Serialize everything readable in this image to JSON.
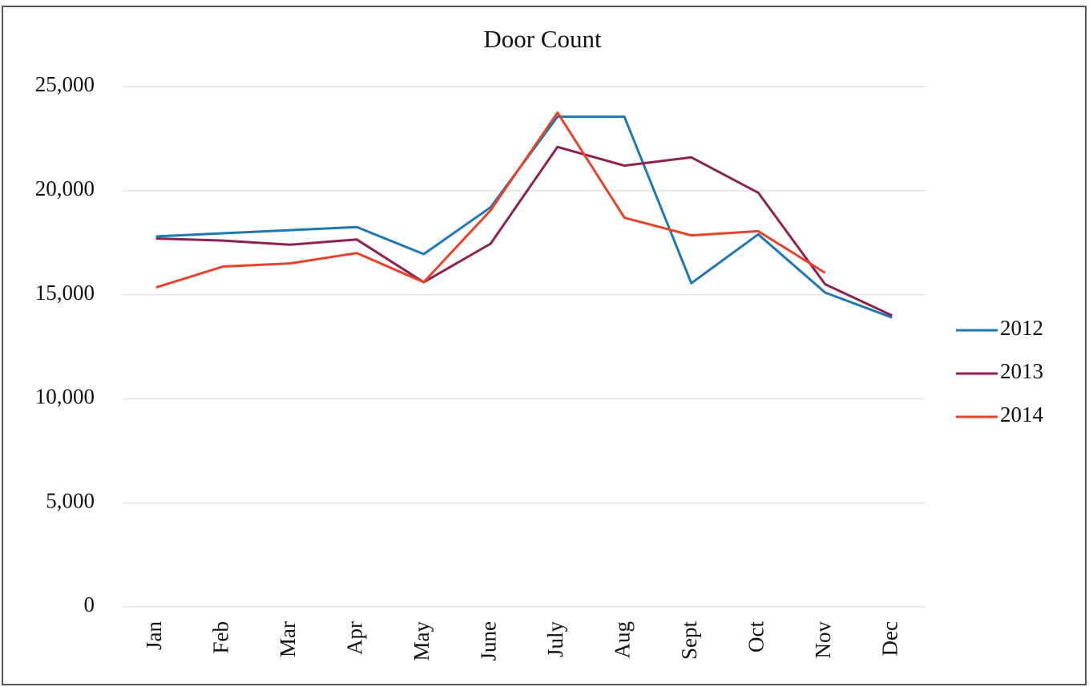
{
  "chart_data": {
    "type": "line",
    "title": "Door Count",
    "categories": [
      "Jan",
      "Feb",
      "Mar",
      "Apr",
      "May",
      "June",
      "July",
      "Aug",
      "Sept",
      "Oct",
      "Nov",
      "Dec"
    ],
    "series": [
      {
        "name": "2012",
        "color": "#1f77b4",
        "values": [
          17800,
          17950,
          18100,
          18250,
          16950,
          19200,
          23550,
          23550,
          15550,
          17900,
          15100,
          13900
        ]
      },
      {
        "name": "2013",
        "color": "#8b2252",
        "values": [
          17700,
          17600,
          17400,
          17650,
          15600,
          17450,
          22100,
          21200,
          21600,
          19900,
          15500,
          14000
        ]
      },
      {
        "name": "2014",
        "color": "#e8432a",
        "values": [
          15350,
          16350,
          16500,
          17000,
          15600,
          19050,
          23750,
          18700,
          17850,
          18050,
          16050,
          null
        ]
      }
    ],
    "ylim": [
      0,
      25000
    ],
    "yticks": [
      {
        "value": 0,
        "label": "0"
      },
      {
        "value": 5000,
        "label": "5,000"
      },
      {
        "value": 10000,
        "label": "10,000"
      },
      {
        "value": 15000,
        "label": "15,000"
      },
      {
        "value": 20000,
        "label": "20,000"
      },
      {
        "value": 25000,
        "label": "25,000"
      }
    ],
    "grid": true,
    "legend": "right"
  }
}
